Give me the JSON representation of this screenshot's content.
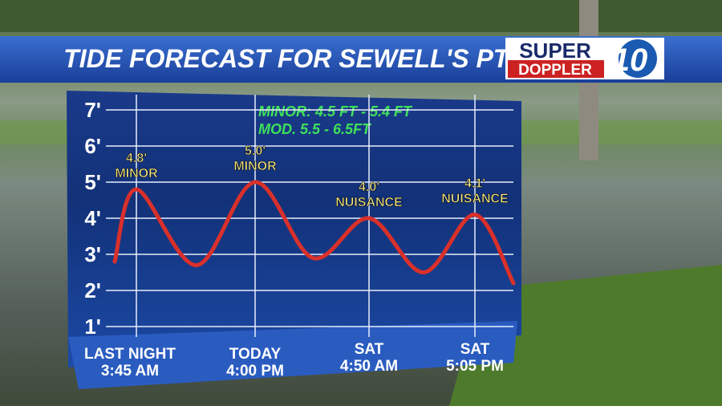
{
  "chart_data": {
    "type": "line",
    "title": "TIDE FORECAST FOR SEWELL'S PT.",
    "logo": {
      "top": "SUPER",
      "bottom": "DOPPLER",
      "number": "10"
    },
    "annotations": [
      "MINOR: 4.5 FT - 5.4 FT",
      "MOD. 5.5 - 6.5FT"
    ],
    "categories": [
      null,
      [
        "LAST NIGHT",
        "3:45 AM"
      ],
      null,
      [
        "TODAY",
        "4:00 PM"
      ],
      null,
      [
        "SAT",
        "4:50 AM"
      ],
      null,
      [
        "SAT",
        "5:05 PM"
      ],
      null
    ],
    "series": [
      {
        "name": "Tide",
        "color": "#d9302a",
        "values": [
          2.8,
          4.8,
          2.7,
          5.0,
          2.9,
          4.0,
          2.5,
          4.1,
          2.2
        ],
        "value_labels": [
          null,
          "4.8'",
          null,
          "5.0'",
          null,
          "4.0'",
          null,
          "4.1'",
          null
        ],
        "flood_labels": [
          null,
          "MINOR",
          null,
          "MINOR",
          null,
          "NUISANCE",
          null,
          "NUISANCE",
          null
        ]
      }
    ],
    "ylim": [
      1,
      7
    ],
    "yticks": [
      {
        "value": 1,
        "label": "1'"
      },
      {
        "value": 2,
        "label": "2'"
      },
      {
        "value": 3,
        "label": "3'"
      },
      {
        "value": 4,
        "label": "4'"
      },
      {
        "value": 5,
        "label": "5'"
      },
      {
        "value": 6,
        "label": "6'"
      },
      {
        "value": 7,
        "label": "7'"
      }
    ],
    "grid": true
  }
}
